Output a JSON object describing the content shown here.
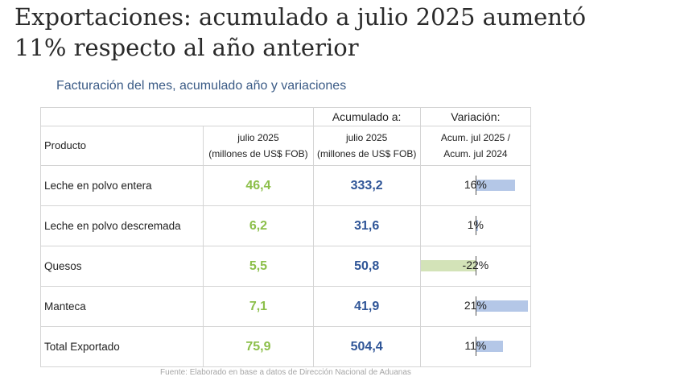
{
  "headline": {
    "line1": "Exportaciones: acumulado a julio 2025 aumentó",
    "line2": "11% respecto al año anterior"
  },
  "subtitle": "Facturación del mes, acumulado año y variaciones",
  "table": {
    "header_top": {
      "acumulado": "Acumulado a:",
      "variacion": "Variación:"
    },
    "header_sub": {
      "producto": "Producto",
      "mes_line1": "julio 2025",
      "mes_line2": "(millones de US$ FOB)",
      "acu_line1": "julio 2025",
      "acu_line2": "(millones de US$ FOB)",
      "var_line1": "Acum. jul 2025 /",
      "var_line2": "Acum. jul 2024"
    },
    "rows": [
      {
        "producto": "Leche en polvo entera",
        "mes": "46,4",
        "acumulado": "333,2",
        "variacion": "16%",
        "variacion_value": 16
      },
      {
        "producto": "Leche en polvo descremada",
        "mes": "6,2",
        "acumulado": "31,6",
        "variacion": "1%",
        "variacion_value": 1
      },
      {
        "producto": "Quesos",
        "mes": "5,5",
        "acumulado": "50,8",
        "variacion": "-22%",
        "variacion_value": -22
      },
      {
        "producto": "Manteca",
        "mes": "7,1",
        "acumulado": "41,9",
        "variacion": "21%",
        "variacion_value": 21
      },
      {
        "producto": "Total Exportado",
        "mes": "75,9",
        "acumulado": "504,4",
        "variacion": "11%",
        "variacion_value": 11
      }
    ]
  },
  "source": "Fuente: Elaborado en base a datos de Dirección Nacional de Aduanas",
  "colors": {
    "mes_value": "#8cbf4a",
    "acumulado_value": "#2f5597",
    "bar_positive": "#b4c7e7",
    "bar_negative": "#d3e3b8",
    "subtitle": "#3b5b86"
  }
}
